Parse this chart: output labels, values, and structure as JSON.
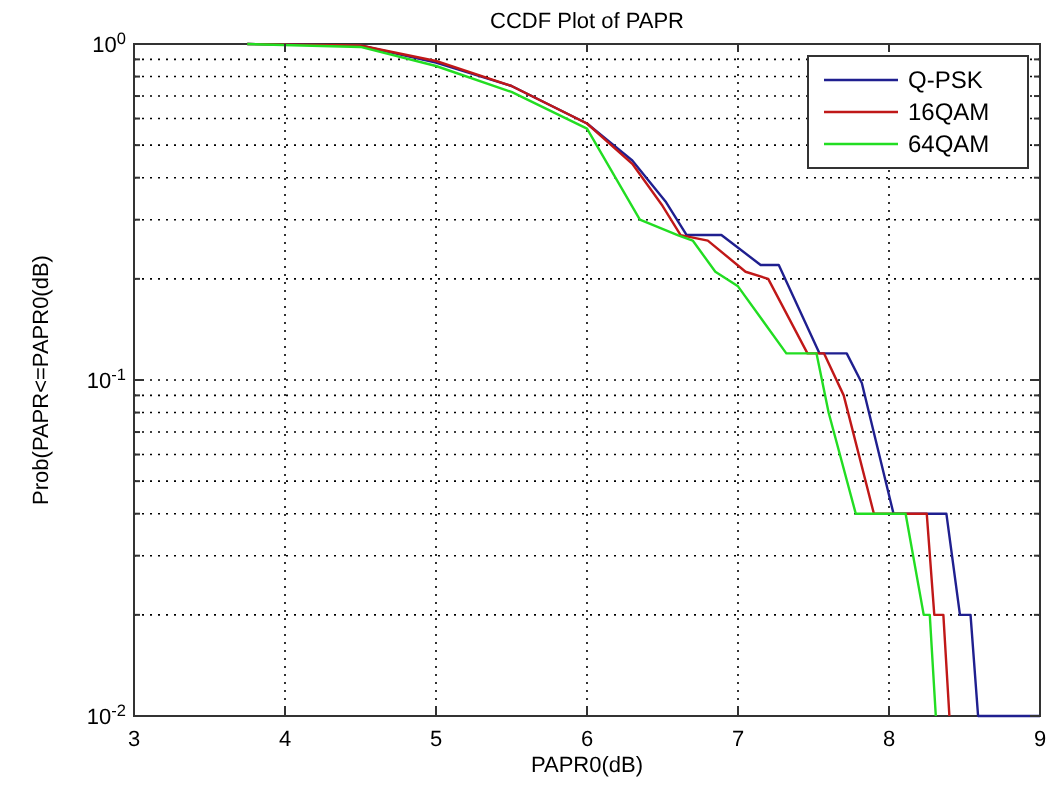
{
  "chart_data": {
    "type": "line",
    "title": "CCDF Plot of PAPR",
    "xlabel": "PAPR0(dB)",
    "ylabel": "Prob(PAPR<=PAPR0(dB)",
    "log": "y",
    "grid": true,
    "legend": "top right",
    "line_style": "solid",
    "marker": "none",
    "xlim": [
      3,
      9
    ],
    "xticks": [
      3,
      4,
      5,
      6,
      7,
      8,
      9
    ],
    "ylim": [
      0.01,
      1
    ],
    "yticks": [
      {
        "value": 0.01,
        "label": "10$^{-2}$"
      },
      {
        "value": 0.02,
        "label": null
      },
      {
        "value": 0.03,
        "label": null
      },
      {
        "value": 0.04,
        "label": null
      },
      {
        "value": 0.05,
        "label": null
      },
      {
        "value": 0.06,
        "label": null
      },
      {
        "value": 0.07,
        "label": null
      },
      {
        "value": 0.08,
        "label": null
      },
      {
        "value": 0.09,
        "label": null
      },
      {
        "value": 0.1,
        "label": "10$^{-1}$"
      },
      {
        "value": 0.2,
        "label": null
      },
      {
        "value": 0.3,
        "label": null
      },
      {
        "value": 0.4,
        "label": null
      },
      {
        "value": 0.5,
        "label": null
      },
      {
        "value": 0.6,
        "label": null
      },
      {
        "value": 0.7,
        "label": null
      },
      {
        "value": 0.8,
        "label": null
      },
      {
        "value": 0.9,
        "label": null
      },
      {
        "value": 1,
        "label": "10$^{0}$"
      }
    ],
    "series": [
      {
        "name": "Q-PSK",
        "color": "#1f1f8f",
        "x": [
          3.75,
          4.5,
          5,
          5.5,
          6,
          6.3,
          6.52,
          6.66,
          6.89,
          7.15,
          7.27,
          7.54,
          7.72,
          7.82,
          8.03,
          8.38,
          8.47,
          8.54,
          8.59,
          9
        ],
        "values": [
          1,
          0.99,
          0.88,
          0.75,
          0.58,
          0.45,
          0.34,
          0.27,
          0.27,
          0.22,
          0.22,
          0.12,
          0.12,
          0.098,
          0.04,
          0.04,
          0.02,
          0.02,
          0.01,
          0.01
        ]
      },
      {
        "name": "16QAM",
        "color": "#c01818",
        "x": [
          3.75,
          4.5,
          5,
          5.5,
          6,
          6.3,
          6.5,
          6.62,
          6.8,
          7.05,
          7.2,
          7.46,
          7.57,
          7.7,
          7.9,
          8.25,
          8.3,
          8.36,
          8.4
        ],
        "values": [
          1,
          0.99,
          0.89,
          0.75,
          0.58,
          0.44,
          0.33,
          0.27,
          0.26,
          0.21,
          0.2,
          0.12,
          0.12,
          0.09,
          0.04,
          0.04,
          0.02,
          0.02,
          0.01
        ]
      },
      {
        "name": "64QAM",
        "color": "#22dd22",
        "x": [
          3.75,
          4.5,
          5,
          5.5,
          6,
          6.35,
          6.6,
          6.7,
          6.85,
          7,
          7.32,
          7.52,
          7.6,
          7.78,
          8.11,
          8.23,
          8.27,
          8.31
        ],
        "values": [
          1,
          0.98,
          0.86,
          0.72,
          0.56,
          0.3,
          0.27,
          0.26,
          0.21,
          0.19,
          0.12,
          0.12,
          0.08,
          0.04,
          0.04,
          0.02,
          0.02,
          0.01
        ]
      }
    ]
  }
}
